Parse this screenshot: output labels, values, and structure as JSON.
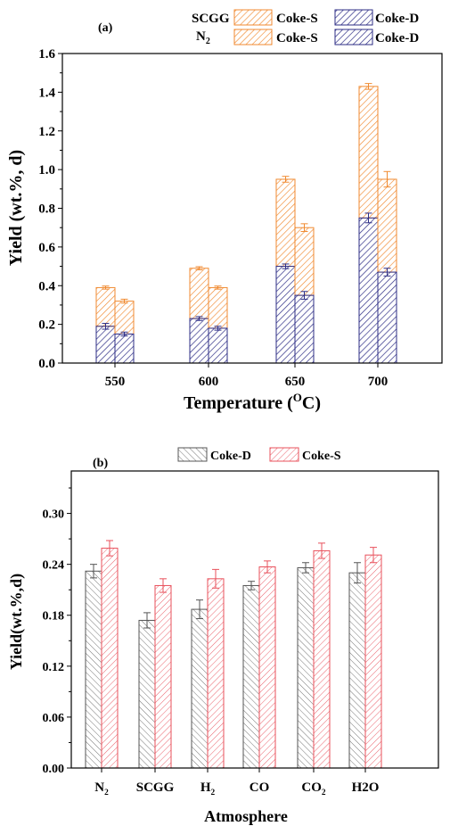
{
  "chart_data": [
    {
      "type": "bar",
      "panel_label": "(a)",
      "xlabel": "Temperature (°C)",
      "ylabel": "Yield (wt.%, d)",
      "ylim": [
        0,
        1.6
      ],
      "yticks": [
        "0.0",
        "0.2",
        "0.4",
        "0.6",
        "0.8",
        "1.0",
        "1.2",
        "1.4",
        "1.6"
      ],
      "categories": [
        "550",
        "600",
        "650",
        "700"
      ],
      "stacked": true,
      "groups": [
        {
          "name": "SCGG",
          "coke_d": [
            0.19,
            0.23,
            0.5,
            0.75
          ],
          "coke_d_err": [
            0.015,
            0.01,
            0.012,
            0.025
          ],
          "total": [
            0.39,
            0.49,
            0.95,
            1.43
          ],
          "total_err": [
            0.008,
            0.008,
            0.015,
            0.015
          ]
        },
        {
          "name": "N2",
          "coke_d": [
            0.15,
            0.18,
            0.35,
            0.47
          ],
          "coke_d_err": [
            0.01,
            0.01,
            0.02,
            0.02
          ],
          "total": [
            0.32,
            0.39,
            0.7,
            0.95
          ],
          "total_err": [
            0.01,
            0.008,
            0.02,
            0.04
          ]
        }
      ],
      "legend": {
        "rows": [
          "SCGG",
          "N2"
        ],
        "items": [
          "Coke-S",
          "Coke-D"
        ],
        "placement": "top"
      },
      "colors": {
        "coke_s": "#f08a30",
        "coke_d": "#2e2e86"
      }
    },
    {
      "type": "bar",
      "panel_label": "(b)",
      "xlabel": "Atmosphere",
      "ylabel": "Yield(wt.%,d)",
      "ylim": [
        0,
        0.35
      ],
      "yticks": [
        "0.00",
        "0.06",
        "0.12",
        "0.18",
        "0.24",
        "0.30"
      ],
      "categories": [
        "N2",
        "SCGG",
        "H2",
        "CO",
        "CO2",
        "H2O"
      ],
      "series": [
        {
          "name": "Coke-D",
          "values": [
            0.232,
            0.174,
            0.187,
            0.215,
            0.236,
            0.23
          ],
          "errors": [
            0.008,
            0.009,
            0.011,
            0.005,
            0.006,
            0.012
          ]
        },
        {
          "name": "Coke-S",
          "values": [
            0.259,
            0.215,
            0.223,
            0.237,
            0.256,
            0.251
          ],
          "errors": [
            0.009,
            0.008,
            0.011,
            0.007,
            0.009,
            0.009
          ]
        }
      ],
      "legend": {
        "placement": "top"
      },
      "colors": {
        "coke_d": "#555555",
        "coke_s": "#e8505b"
      }
    }
  ]
}
